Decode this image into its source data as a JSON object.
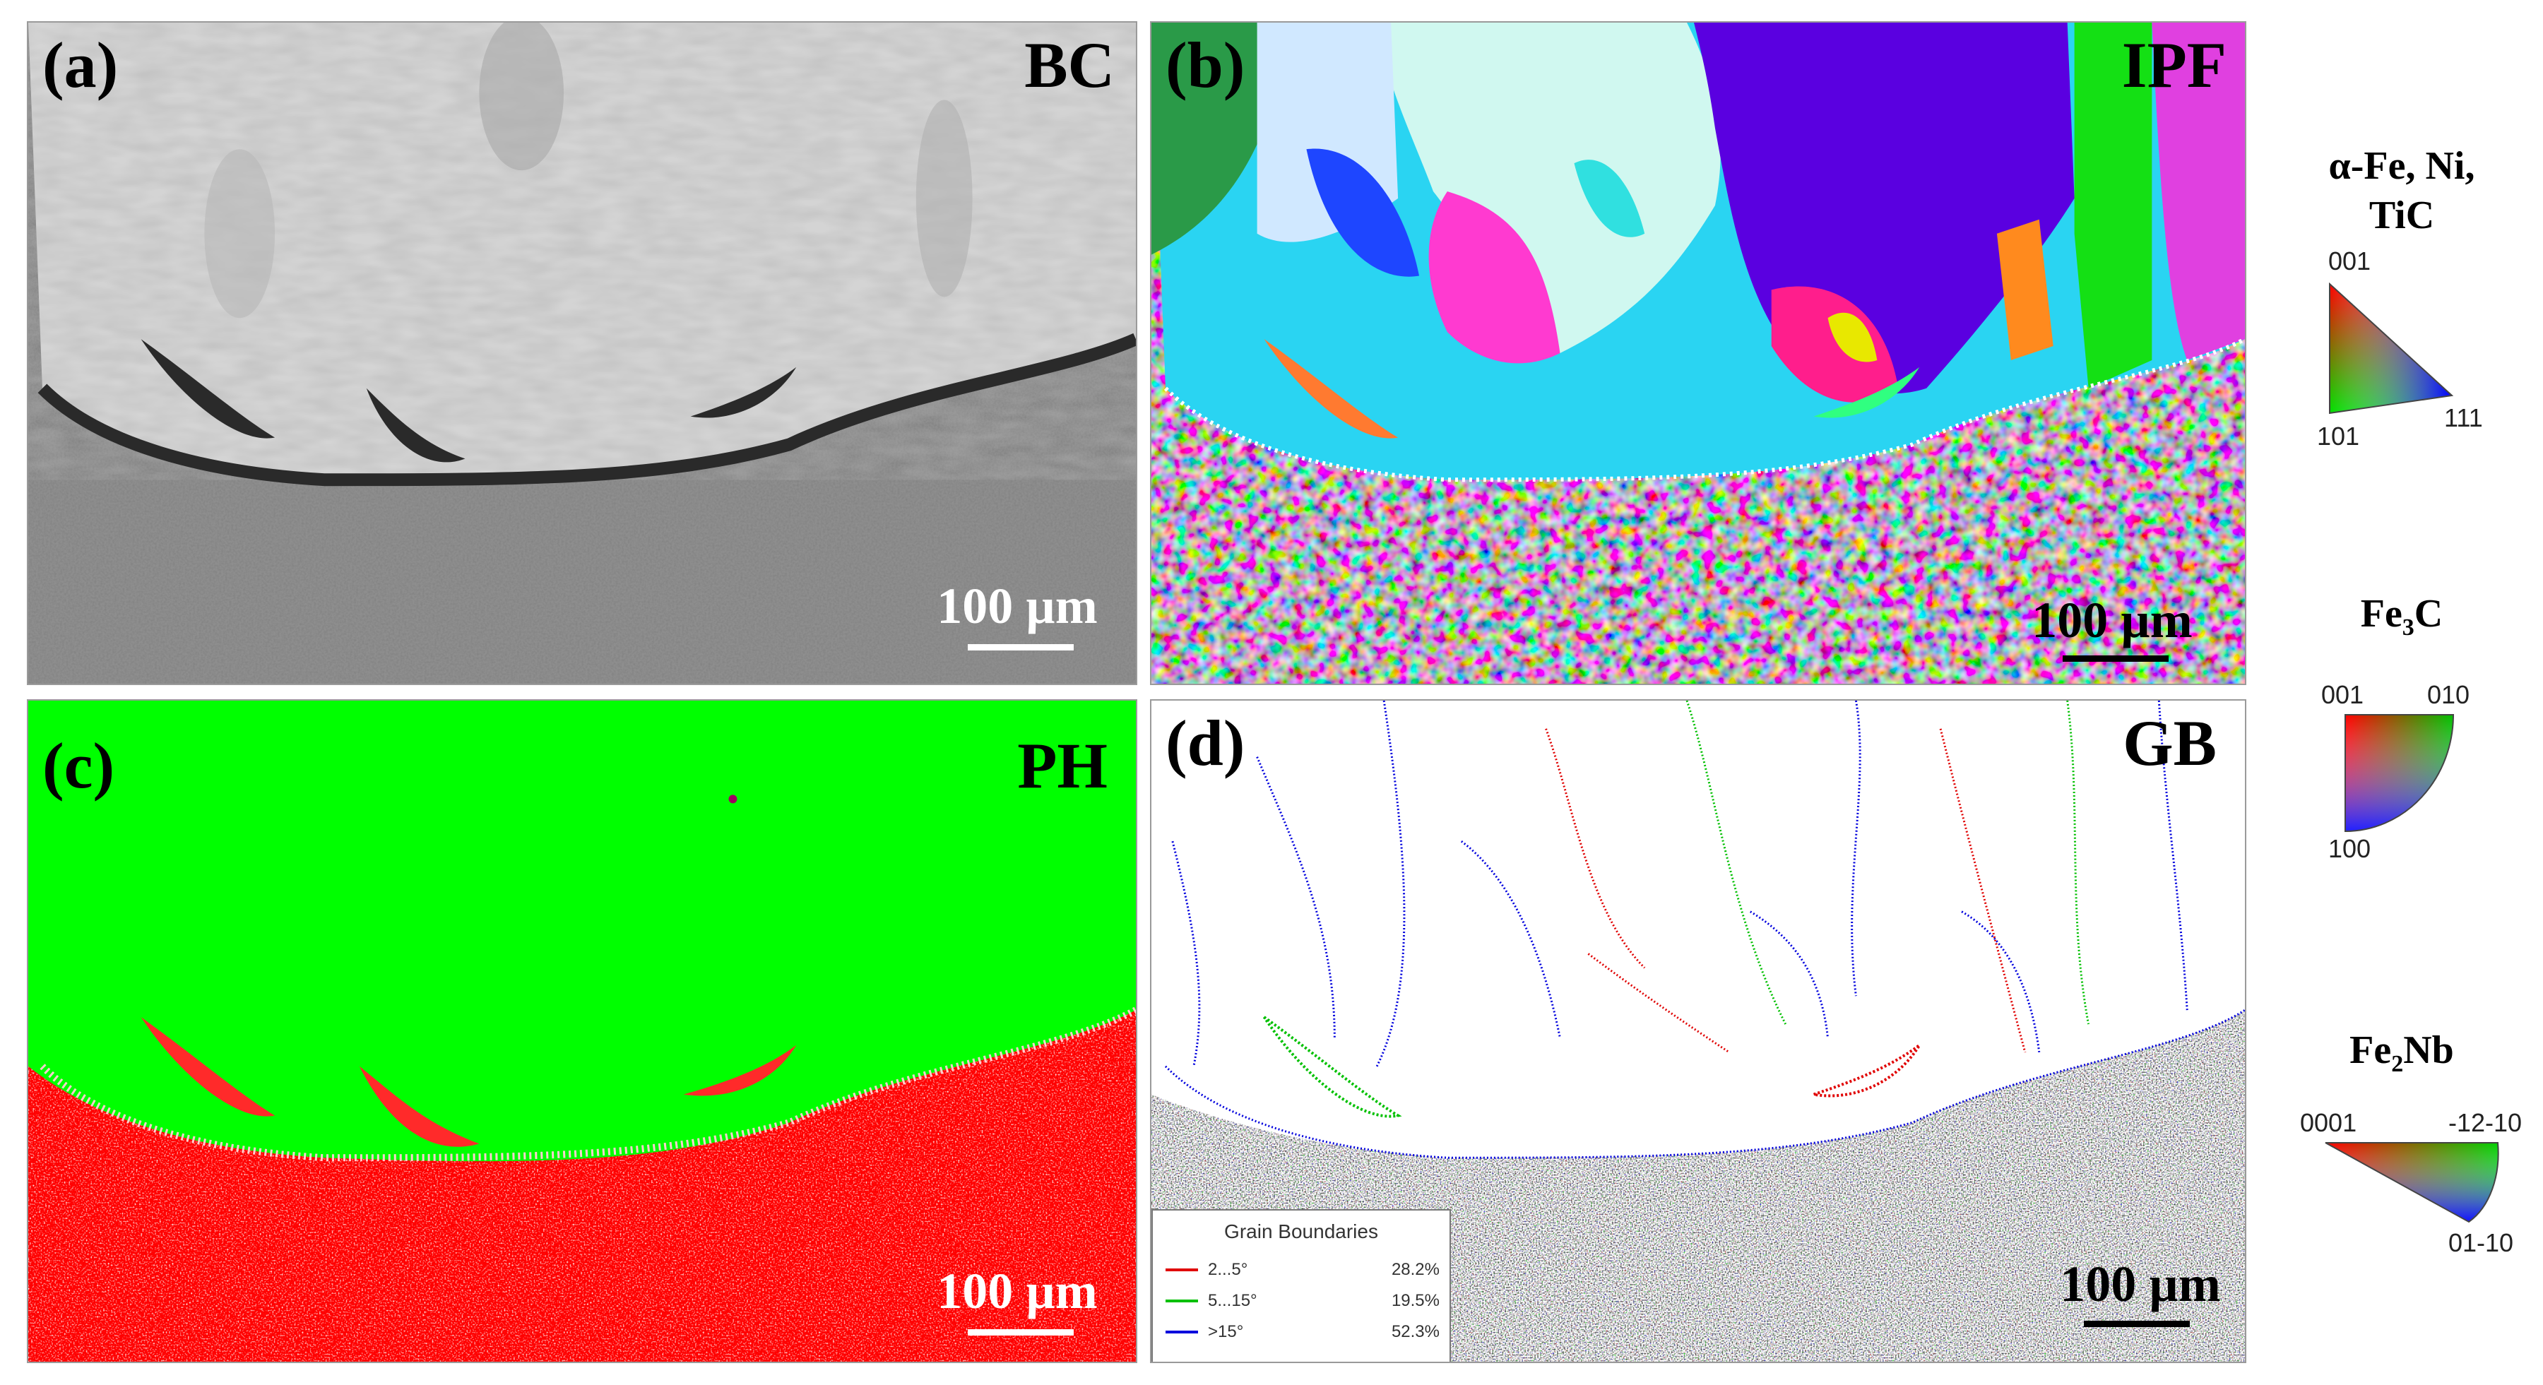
{
  "panels": {
    "a": {
      "label": "(a)",
      "tag": "BC",
      "scale": "100 µm"
    },
    "b": {
      "label": "(b)",
      "tag": "IPF",
      "scale": "100 µm"
    },
    "c": {
      "label": "(c)",
      "tag": "PH",
      "scale": "100 µm"
    },
    "d": {
      "label": "(d)",
      "tag": "GB",
      "scale": "100 µm"
    }
  },
  "gb_legend": {
    "title": "Grain Boundaries",
    "rows": [
      {
        "range": "2...5°",
        "percent": "28.2%",
        "color": "#e00000"
      },
      {
        "range": "5...15°",
        "percent": "19.5%",
        "color": "#00c000"
      },
      {
        "range": ">15°",
        "percent": "52.3%",
        "color": "#0000dd"
      }
    ]
  },
  "color_keys": {
    "key1": {
      "title_line1": "α-Fe, Ni,",
      "title_line2": "TiC",
      "top": "001",
      "left": "101",
      "right": "111"
    },
    "key2": {
      "title": "Fe",
      "sub": "3",
      "title_end": "C",
      "top_left": "001",
      "top_right": "010",
      "bottom": "100"
    },
    "key3": {
      "title": "Fe",
      "sub": "2",
      "title_end": "Nb",
      "left": "0001",
      "right": "-12-10",
      "bottom": "01-10"
    }
  },
  "colors": {
    "phase_green": "#00ff00",
    "phase_red": "#ff0000",
    "bc_light": "#cfcfcf",
    "bc_dark": "#8a8a8a"
  }
}
